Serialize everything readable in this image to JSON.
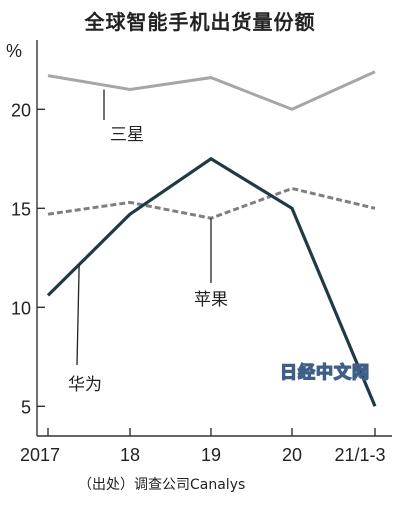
{
  "chart_data": {
    "type": "line",
    "title": "全球智能手机出货量份额",
    "unit_label": "%",
    "x": [
      "2017",
      "18",
      "19",
      "20",
      "21/1-3"
    ],
    "ylim": [
      3.5,
      23.5
    ],
    "yticks": [
      5,
      10,
      15,
      20
    ],
    "series": [
      {
        "name": "三星",
        "values": [
          21.7,
          21.0,
          21.6,
          20.0,
          21.9
        ],
        "color": "#a6a6a6",
        "style": "solid"
      },
      {
        "name": "苹果",
        "values": [
          14.7,
          15.3,
          14.5,
          16.0,
          15.0
        ],
        "color": "#7f7f7f",
        "style": "dashed"
      },
      {
        "name": "华为",
        "values": [
          10.6,
          14.7,
          17.5,
          15.0,
          5.0
        ],
        "color": "#1f3a45",
        "style": "solid"
      }
    ],
    "grid": false,
    "legend": "direct-labels"
  },
  "source": "（出处）调查公司Canalys",
  "watermark": "日经中文网"
}
